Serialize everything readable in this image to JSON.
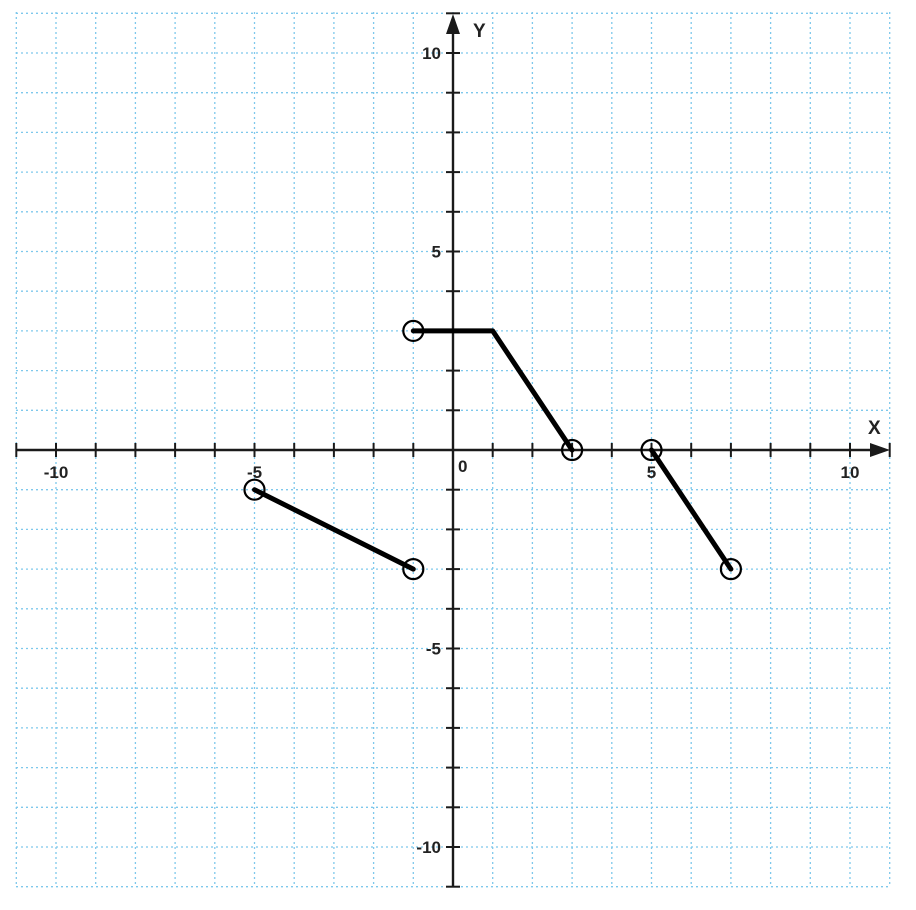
{
  "chart_data": {
    "type": "line",
    "xlabel": "X",
    "ylabel": "Y",
    "origin_label": "0",
    "xlim": [
      -11,
      11
    ],
    "ylim": [
      -11,
      11
    ],
    "grid": true,
    "grid_step": 1,
    "tick_step": 1,
    "x_tick_labels": [
      {
        "value": -10,
        "text": "-10"
      },
      {
        "value": -5,
        "text": "-5"
      },
      {
        "value": 5,
        "text": "5"
      },
      {
        "value": 10,
        "text": "10"
      }
    ],
    "y_tick_labels": [
      {
        "value": 10,
        "text": "10"
      },
      {
        "value": 5,
        "text": "5"
      },
      {
        "value": -5,
        "text": "-5"
      },
      {
        "value": -10,
        "text": "-10"
      }
    ],
    "series": [
      {
        "points": [
          [
            -5,
            -1
          ],
          [
            -1,
            -3
          ]
        ],
        "endpoints": "open"
      },
      {
        "points": [
          [
            -1,
            3
          ],
          [
            1,
            3
          ],
          [
            3,
            0
          ]
        ],
        "endpoints": "open"
      },
      {
        "points": [
          [
            5,
            0
          ],
          [
            7,
            -3
          ]
        ],
        "endpoints": "open"
      }
    ],
    "colors": {
      "grid": "#7ec8ec",
      "axis": "#1a1a1a",
      "line": "#000000"
    }
  }
}
